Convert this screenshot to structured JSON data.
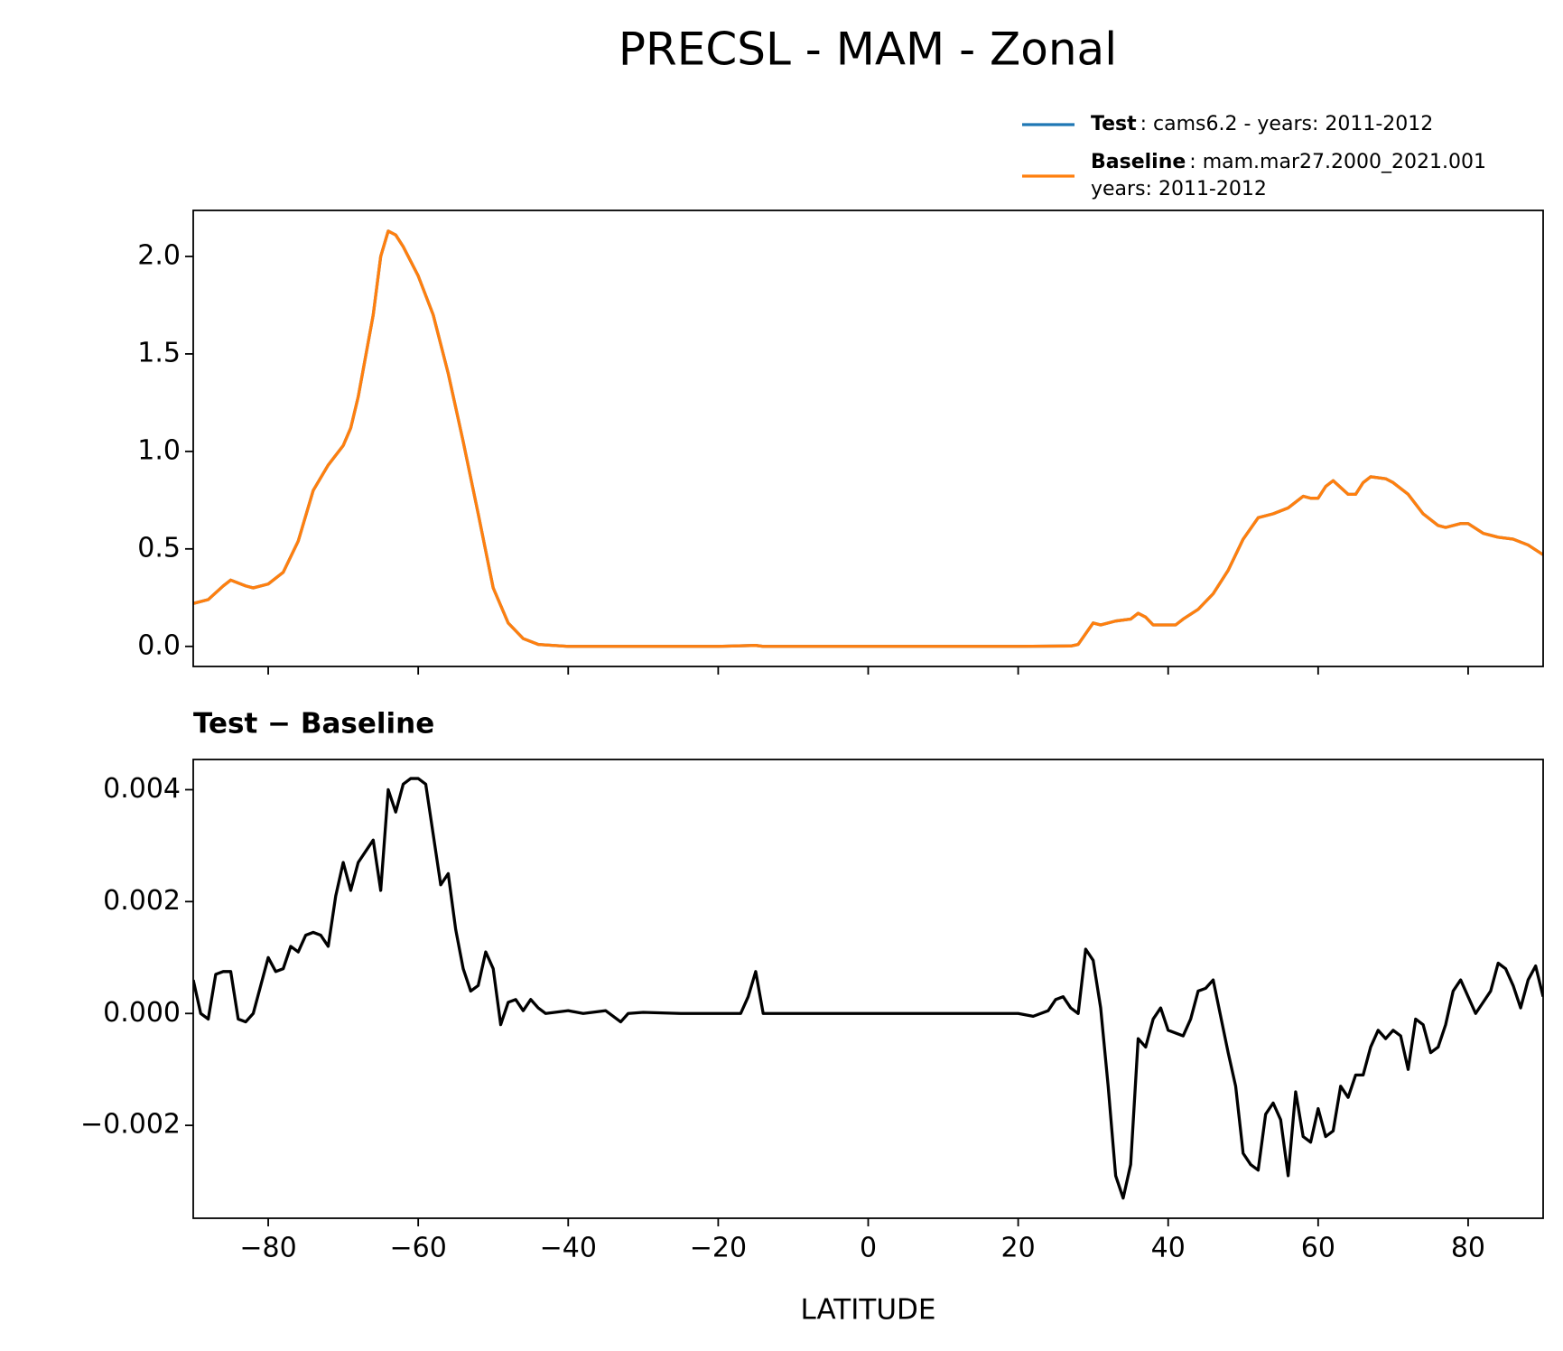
{
  "chart_data": [
    {
      "type": "line",
      "title": "PRECSL - MAM - Zonal",
      "x": [
        -90,
        -88,
        -86,
        -85,
        -83,
        -82,
        -80,
        -78,
        -76,
        -74,
        -72,
        -70,
        -69,
        -68,
        -66,
        -65,
        -64,
        -63,
        -62,
        -60,
        -58,
        -56,
        -54,
        -52,
        -50,
        -48,
        -46,
        -44,
        -40,
        -20,
        -15,
        -14,
        0,
        20,
        27,
        28,
        30,
        31,
        33,
        35,
        36,
        37,
        38,
        40,
        41,
        42,
        44,
        46,
        48,
        50,
        52,
        54,
        56,
        58,
        59,
        60,
        61,
        62,
        64,
        65,
        66,
        67,
        69,
        70,
        72,
        74,
        76,
        77,
        79,
        80,
        82,
        84,
        86,
        88,
        90
      ],
      "series": [
        {
          "name": "Test",
          "legend_text": [
            ": cams6.2 - years: 2011-2012"
          ],
          "color": "#1f77b4",
          "values": [
            0.22,
            0.24,
            0.31,
            0.34,
            0.31,
            0.3,
            0.32,
            0.38,
            0.54,
            0.8,
            0.93,
            1.03,
            1.12,
            1.28,
            1.7,
            2.0,
            2.13,
            2.11,
            2.05,
            1.9,
            1.7,
            1.4,
            1.05,
            0.68,
            0.3,
            0.12,
            0.04,
            0.01,
            0,
            0,
            0.005,
            0,
            0,
            0,
            0.002,
            0.01,
            0.12,
            0.11,
            0.13,
            0.14,
            0.17,
            0.15,
            0.11,
            0.11,
            0.11,
            0.14,
            0.19,
            0.27,
            0.39,
            0.55,
            0.66,
            0.68,
            0.71,
            0.77,
            0.76,
            0.76,
            0.82,
            0.85,
            0.78,
            0.78,
            0.84,
            0.87,
            0.86,
            0.84,
            0.78,
            0.68,
            0.62,
            0.61,
            0.63,
            0.63,
            0.58,
            0.56,
            0.55,
            0.52,
            0.47
          ]
        },
        {
          "name": "Baseline",
          "legend_text": [
            ": mam.mar27.2000_2021.001",
            "years: 2011-2012"
          ],
          "color": "#ff7f0e",
          "values": [
            0.22,
            0.24,
            0.31,
            0.34,
            0.31,
            0.3,
            0.32,
            0.38,
            0.54,
            0.8,
            0.93,
            1.03,
            1.12,
            1.28,
            1.7,
            2.0,
            2.13,
            2.11,
            2.05,
            1.9,
            1.7,
            1.4,
            1.05,
            0.68,
            0.3,
            0.12,
            0.04,
            0.01,
            0,
            0,
            0.005,
            0,
            0,
            0,
            0.002,
            0.01,
            0.12,
            0.11,
            0.13,
            0.14,
            0.17,
            0.15,
            0.11,
            0.11,
            0.11,
            0.14,
            0.19,
            0.27,
            0.39,
            0.55,
            0.66,
            0.68,
            0.71,
            0.77,
            0.76,
            0.76,
            0.82,
            0.85,
            0.78,
            0.78,
            0.84,
            0.87,
            0.86,
            0.84,
            0.78,
            0.68,
            0.62,
            0.61,
            0.63,
            0.63,
            0.58,
            0.56,
            0.55,
            0.52,
            0.47
          ]
        }
      ],
      "xlim": [
        -90,
        90
      ],
      "xticks": [
        {
          "value": -80,
          "label": "−80"
        },
        {
          "value": -60,
          "label": "−60"
        },
        {
          "value": -40,
          "label": "−40"
        },
        {
          "value": -20,
          "label": "−20"
        },
        0,
        20,
        40,
        60,
        80
      ],
      "ylim": [
        -0.103,
        2.236
      ],
      "yticks": [
        {
          "value": 0,
          "label": "0.0"
        },
        0.5,
        {
          "value": 1,
          "label": "1.0"
        },
        1.5,
        {
          "value": 2,
          "label": "2.0"
        }
      ],
      "legend": "upper right"
    },
    {
      "type": "line",
      "title": "Test − Baseline",
      "xlabel": "LATITUDE",
      "x": [
        -90,
        -89,
        -88,
        -87,
        -86,
        -85,
        -84,
        -83,
        -82,
        -81,
        -80,
        -79,
        -78,
        -77,
        -76,
        -75,
        -74,
        -73,
        -72,
        -71,
        -70,
        -69,
        -68,
        -67,
        -66,
        -65,
        -64,
        -63,
        -62,
        -61,
        -60,
        -59,
        -58,
        -57,
        -56,
        -55,
        -54,
        -53,
        -52,
        -51,
        -50,
        -49,
        -48,
        -47,
        -46,
        -45,
        -44,
        -43,
        -40,
        -38,
        -35,
        -33,
        -32,
        -30,
        -25,
        -17,
        -16,
        -15,
        -14,
        0,
        20,
        22,
        24,
        25,
        26,
        27,
        28,
        29,
        30,
        31,
        32,
        33,
        34,
        35,
        36,
        37,
        38,
        39,
        40,
        42,
        43,
        44,
        45,
        46,
        48,
        49,
        50,
        51,
        52,
        53,
        54,
        55,
        56,
        57,
        58,
        59,
        60,
        61,
        62,
        63,
        64,
        65,
        66,
        67,
        68,
        69,
        70,
        71,
        72,
        73,
        74,
        75,
        76,
        77,
        78,
        79,
        80,
        81,
        82,
        83,
        84,
        85,
        86,
        87,
        88,
        89,
        90
      ],
      "series": [
        {
          "name": "Test − Baseline",
          "color": "#000000",
          "values": [
            0.0006,
            0.0,
            -0.0001,
            0.0007,
            0.00075,
            0.00075,
            -0.0001,
            -0.00015,
            0.0,
            0.0005,
            0.001,
            0.00075,
            0.0008,
            0.0012,
            0.0011,
            0.0014,
            0.00145,
            0.0014,
            0.0012,
            0.0021,
            0.0027,
            0.0022,
            0.0027,
            0.0029,
            0.0031,
            0.0022,
            0.004,
            0.0036,
            0.0041,
            0.0042,
            0.0042,
            0.0041,
            0.0032,
            0.0023,
            0.0025,
            0.0015,
            0.0008,
            0.0004,
            0.0005,
            0.0011,
            0.0008,
            -0.0002,
            0.0002,
            0.00025,
            5e-05,
            0.00025,
            0.0001,
            0.0,
            5e-05,
            0.0,
            5e-05,
            -0.00015,
            0.0,
            2e-05,
            0.0,
            0.0,
            0.0003,
            0.00075,
            0.0,
            0,
            0,
            -5e-05,
            5e-05,
            0.00025,
            0.0003,
            0.0001,
            0.0,
            0.00115,
            0.00095,
            0.0001,
            -0.0013,
            -0.0029,
            -0.0033,
            -0.0027,
            -0.00045,
            -0.0006,
            -0.0001,
            0.0001,
            -0.0003,
            -0.0004,
            -0.0001,
            0.0004,
            0.00045,
            0.0006,
            -0.0007,
            -0.0013,
            -0.0025,
            -0.0027,
            -0.0028,
            -0.0018,
            -0.0016,
            -0.0019,
            -0.0029,
            -0.0014,
            -0.0022,
            -0.0023,
            -0.0017,
            -0.0022,
            -0.0021,
            -0.0013,
            -0.0015,
            -0.0011,
            -0.0011,
            -0.0006,
            -0.0003,
            -0.00045,
            -0.0003,
            -0.0004,
            -0.001,
            -0.0001,
            -0.0002,
            -0.0007,
            -0.0006,
            -0.0002,
            0.0004,
            0.0006,
            0.0003,
            0.0,
            0.0002,
            0.0004,
            0.0009,
            0.0008,
            0.0005,
            0.0001,
            0.0006,
            0.00085,
            0.0003
          ]
        }
      ],
      "xlim": [
        -90,
        90
      ],
      "xticks": [
        {
          "value": -80,
          "label": "−80"
        },
        {
          "value": -60,
          "label": "−60"
        },
        {
          "value": -40,
          "label": "−40"
        },
        {
          "value": -20,
          "label": "−20"
        },
        0,
        20,
        40,
        60,
        80
      ],
      "ylim": [
        -0.00366,
        0.00454
      ],
      "yticks": [
        {
          "value": -0.002,
          "label": "−0.002"
        },
        {
          "value": 0,
          "label": "0.000"
        },
        0.002,
        0.004
      ]
    }
  ]
}
